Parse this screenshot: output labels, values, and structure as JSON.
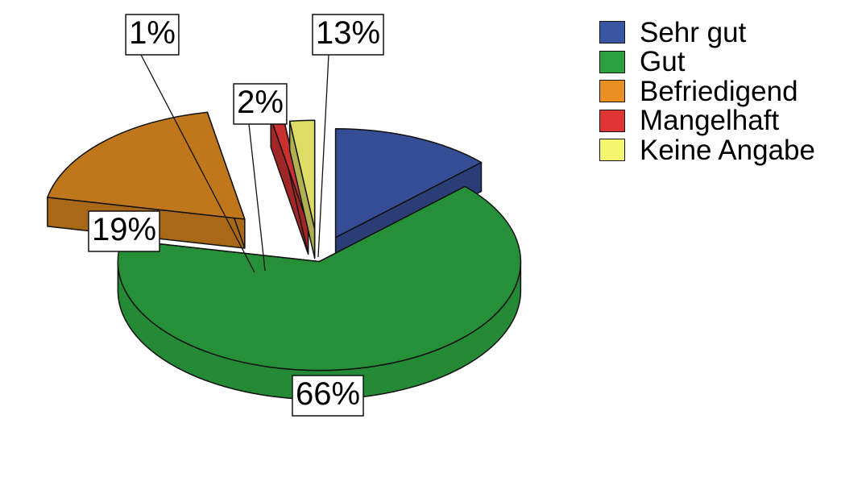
{
  "chart_data": {
    "type": "pie",
    "title": "",
    "slices": [
      {
        "label": "Sehr gut",
        "value": 13,
        "value_label": "13%",
        "color": "#3a55a4"
      },
      {
        "label": "Gut",
        "value": 66,
        "value_label": "66%",
        "color": "#2aa03e"
      },
      {
        "label": "Befriedigend",
        "value": 19,
        "value_label": "19%",
        "color": "#ea9020"
      },
      {
        "label": "Mangelhaft",
        "value": 1,
        "value_label": "1%",
        "color": "#e03535"
      },
      {
        "label": "Keine Angabe",
        "value": 2,
        "value_label": "2%",
        "color": "#f5f570"
      }
    ],
    "legend_position": "right",
    "exploded": true,
    "three_d": true
  }
}
